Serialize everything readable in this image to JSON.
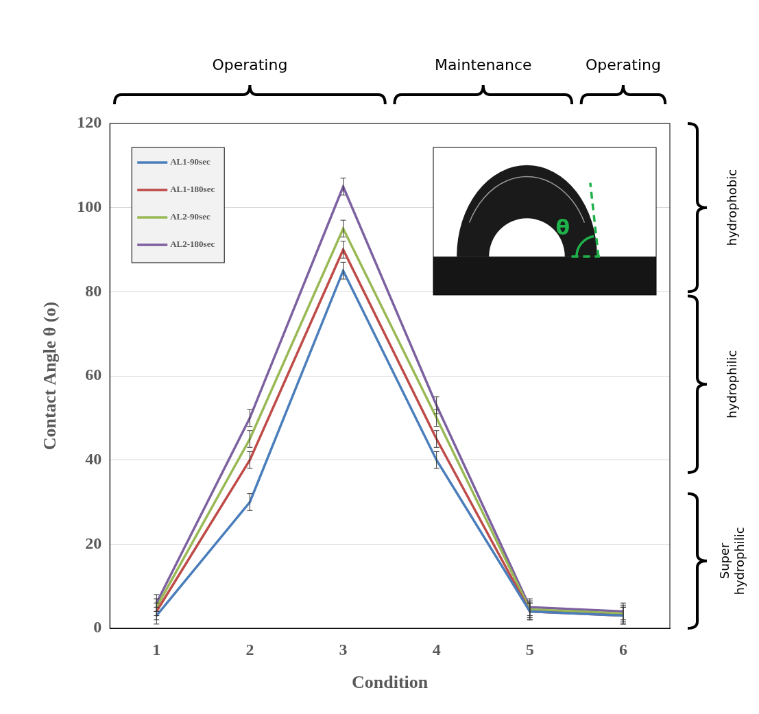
{
  "chart_data": {
    "type": "line",
    "x_label": "Condition",
    "y_label": "Contact Angle θ (o)",
    "categories": [
      "1",
      "2",
      "3",
      "4",
      "5",
      "6"
    ],
    "series": [
      {
        "name": "AL1-90sec",
        "color": "#4a7ebb",
        "values": [
          3,
          30,
          85,
          40,
          4,
          3
        ],
        "errors": [
          2,
          2,
          2,
          2,
          2,
          2
        ]
      },
      {
        "name": "AL1-180sec",
        "color": "#be4b48",
        "values": [
          4,
          40,
          90,
          45,
          4,
          3
        ],
        "errors": [
          2,
          2,
          2,
          2,
          2,
          2
        ]
      },
      {
        "name": "AL2-90sec",
        "color": "#98b954",
        "values": [
          5,
          45,
          95,
          50,
          4.5,
          3.5
        ],
        "errors": [
          2,
          2,
          2,
          2,
          2,
          2
        ]
      },
      {
        "name": "AL2-180sec",
        "color": "#7d60a0",
        "values": [
          6,
          50,
          105,
          53,
          5,
          4
        ],
        "errors": [
          2,
          2,
          2,
          2,
          2,
          2
        ]
      }
    ],
    "ylim": [
      0,
      120
    ],
    "yticks": [
      0,
      20,
      40,
      60,
      80,
      100,
      120
    ],
    "grid": true,
    "legend": "upper left",
    "phases": [
      {
        "label": "Operating",
        "from": "1",
        "to": "3"
      },
      {
        "label": "Maintenance",
        "from": "4",
        "to": "5"
      },
      {
        "label": "Operating",
        "from": "6",
        "to": "6"
      }
    ],
    "regions": [
      {
        "label": "hydrophobic",
        "range": [
          80,
          120
        ]
      },
      {
        "label": "hydrophilic",
        "range": [
          37,
          79
        ]
      },
      {
        "label": "Super hydrophilic",
        "range": [
          0,
          32
        ]
      }
    ],
    "inset_label": "θ"
  }
}
